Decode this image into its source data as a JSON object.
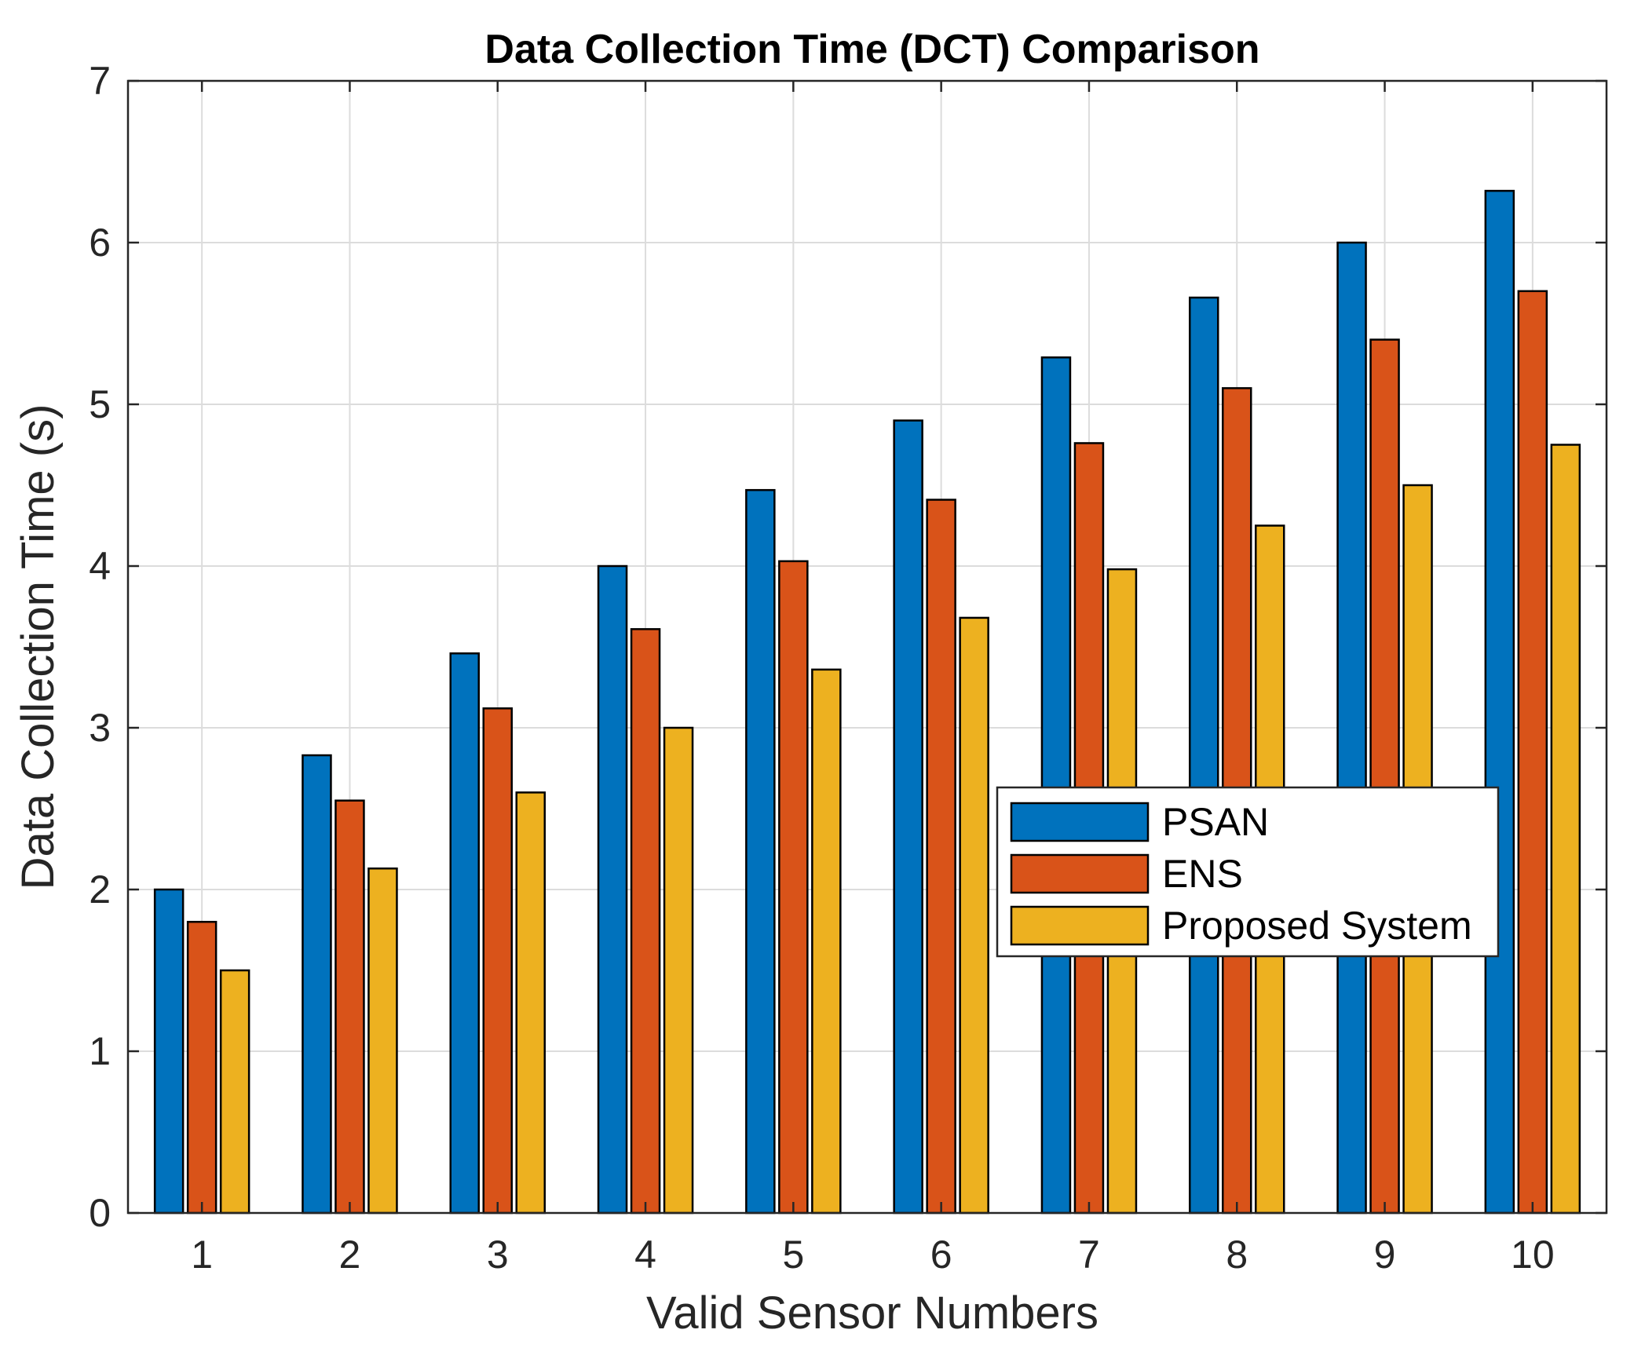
{
  "chart_data": {
    "type": "bar",
    "title": "Data Collection Time (DCT) Comparison",
    "xlabel": "Valid Sensor Numbers",
    "ylabel": "Data Collection Time (s)",
    "categories": [
      "1",
      "2",
      "3",
      "4",
      "5",
      "6",
      "7",
      "8",
      "9",
      "10"
    ],
    "ylim": [
      0,
      7
    ],
    "yticks": [
      "0",
      "1",
      "2",
      "3",
      "4",
      "5",
      "6",
      "7"
    ],
    "grid": true,
    "legend_position": "center-right",
    "series": [
      {
        "name": "PSAN",
        "color": "#0072BD",
        "values": [
          2.0,
          2.83,
          3.46,
          4.0,
          4.47,
          4.9,
          5.29,
          5.66,
          6.0,
          6.32
        ]
      },
      {
        "name": "ENS",
        "color": "#D95319",
        "values": [
          1.8,
          2.55,
          3.12,
          3.61,
          4.03,
          4.41,
          4.76,
          5.1,
          5.4,
          5.7
        ]
      },
      {
        "name": "Proposed System",
        "color": "#EDB120",
        "values": [
          1.5,
          2.13,
          2.6,
          3.0,
          3.36,
          3.68,
          3.98,
          4.25,
          4.5,
          4.75
        ]
      }
    ]
  }
}
